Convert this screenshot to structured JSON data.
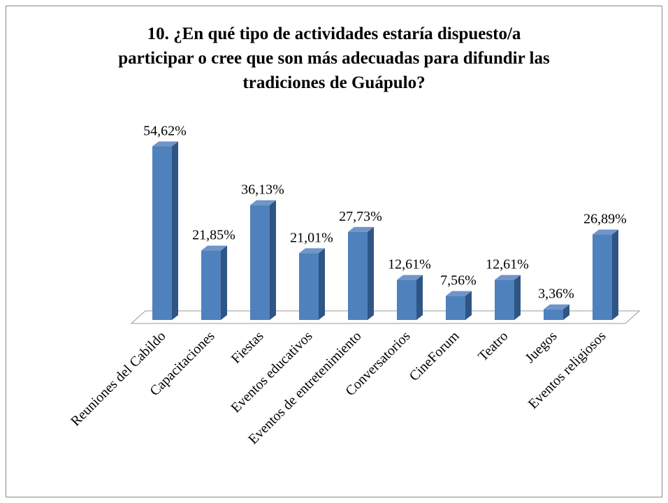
{
  "chart_data": {
    "type": "bar3d",
    "title": [
      "10. ¿En qué tipo de actividades estaría dispuesto/a",
      "participar o cree que son más adecuadas para difundir las",
      "tradiciones de Guápulo?"
    ],
    "categories": [
      "Reuniones del Cabildo",
      "Capacitaciones",
      "Fiestas",
      "Eventos educativos",
      "Eventos de entretenimiento",
      "Conversatorios",
      "CineForum",
      "Teatro",
      "Juegos",
      "Eventos religiosos"
    ],
    "values": [
      54.62,
      21.85,
      36.13,
      21.01,
      27.73,
      12.61,
      7.56,
      12.61,
      3.36,
      26.89
    ],
    "value_labels": [
      "54,62%",
      "21,85%",
      "36,13%",
      "21,01%",
      "27,73%",
      "12,61%",
      "7,56%",
      "12,61%",
      "3,36%",
      "26,89%"
    ],
    "color": "#4f81bd"
  }
}
